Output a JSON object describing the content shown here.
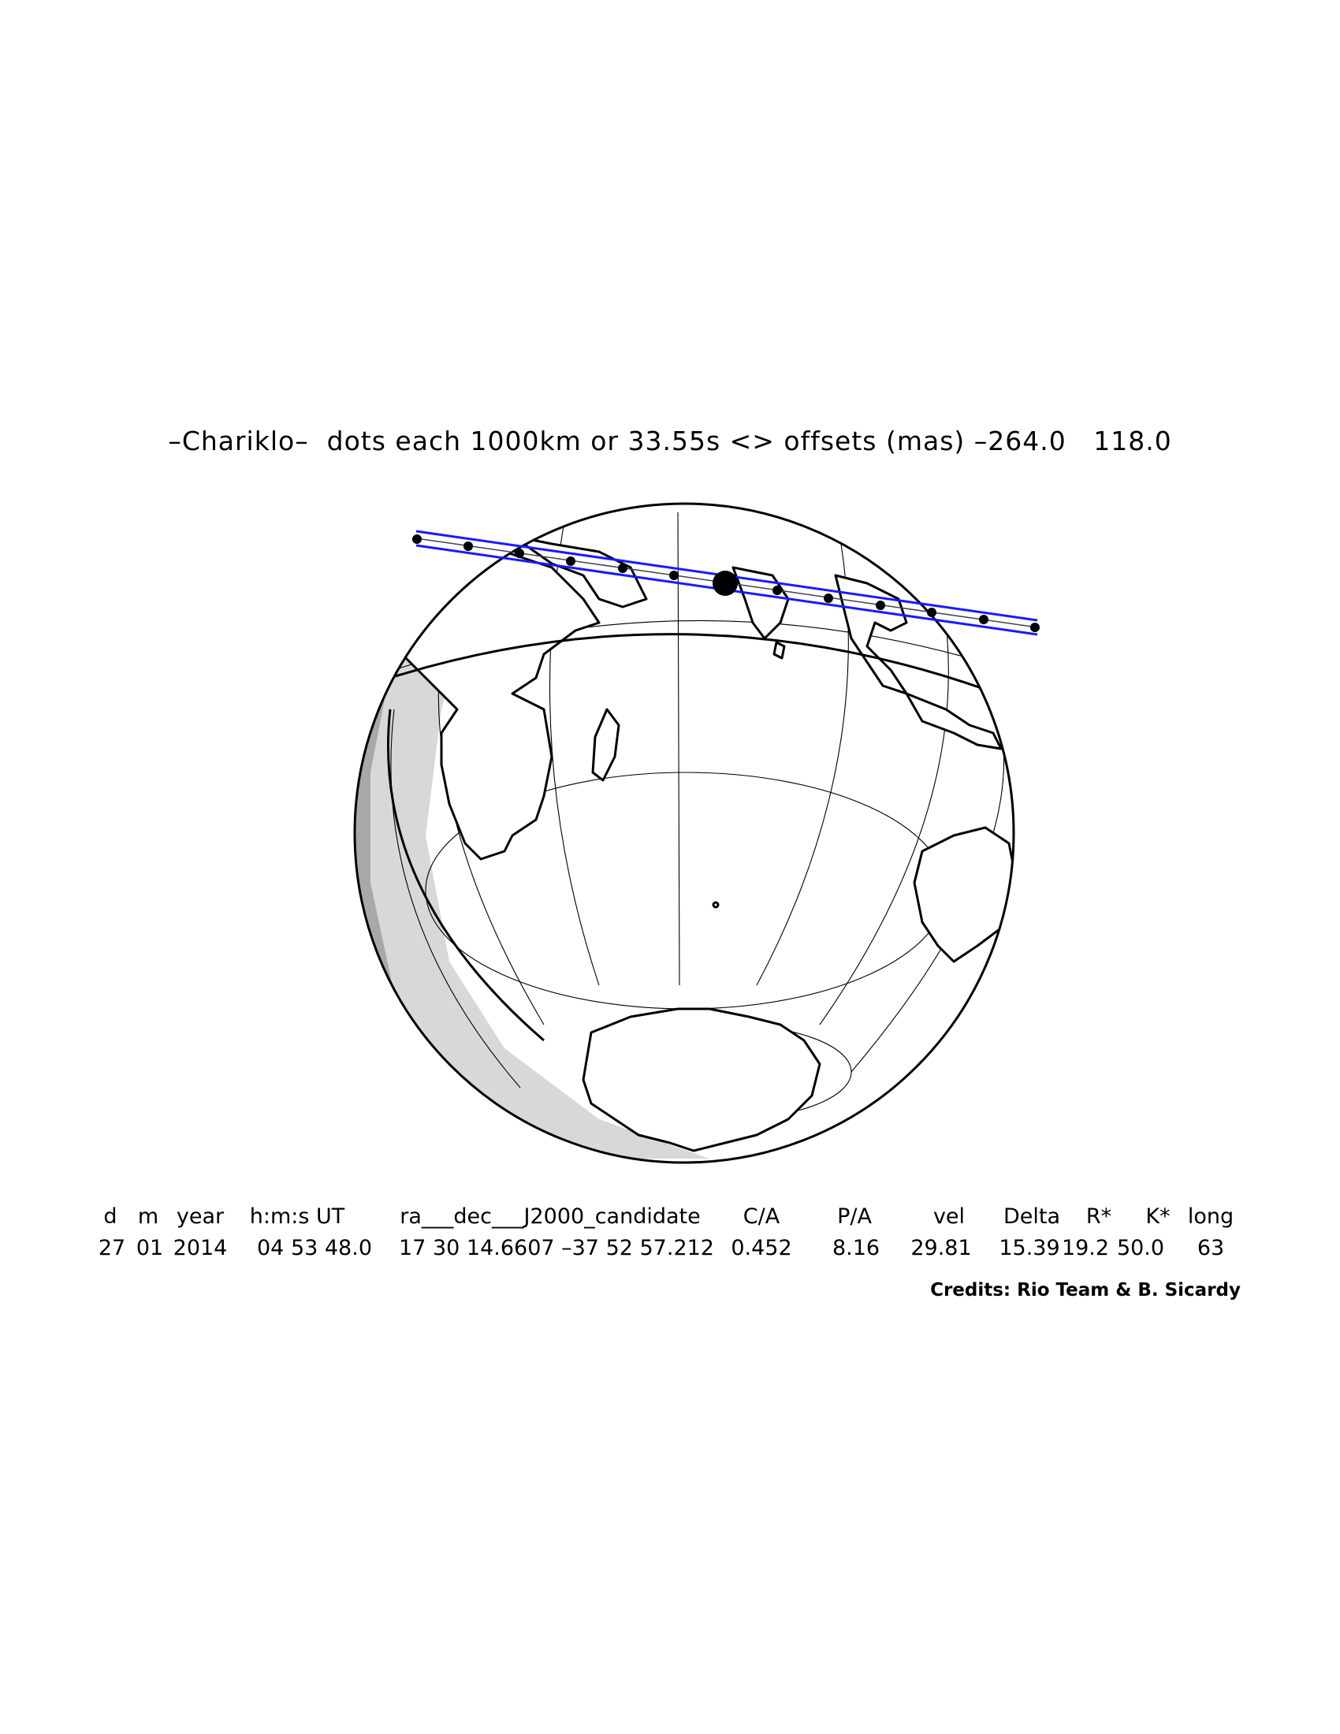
{
  "title": "–Chariklo–  dots each 1000km or 33.55s <> offsets (mas) –264.0   118.0",
  "map": {
    "path_color": "#1a1aff",
    "land_color": "#000000",
    "twilight_light": "#d8d8d8",
    "twilight_dark": "#a8a8a8",
    "features": [
      "globe",
      "graticule",
      "continents",
      "occultation-path",
      "time-dots",
      "terminator",
      "night-shading"
    ]
  },
  "table": {
    "headers": [
      "d",
      "m",
      "year",
      "h:m:s UT",
      "ra___dec___J2000_candidate",
      "C/A",
      "P/A",
      "vel",
      "Delta",
      "R*",
      "K*",
      "long"
    ],
    "values": [
      "27",
      "01",
      "2014",
      "04 53 48.0",
      "17 30 14.6607 –37 52 57.212",
      "0.452",
      "8.16",
      "29.81",
      "15.39",
      "19.2",
      "50.0",
      "63"
    ]
  },
  "credits": "Credits: Rio Team & B. Sicardy"
}
